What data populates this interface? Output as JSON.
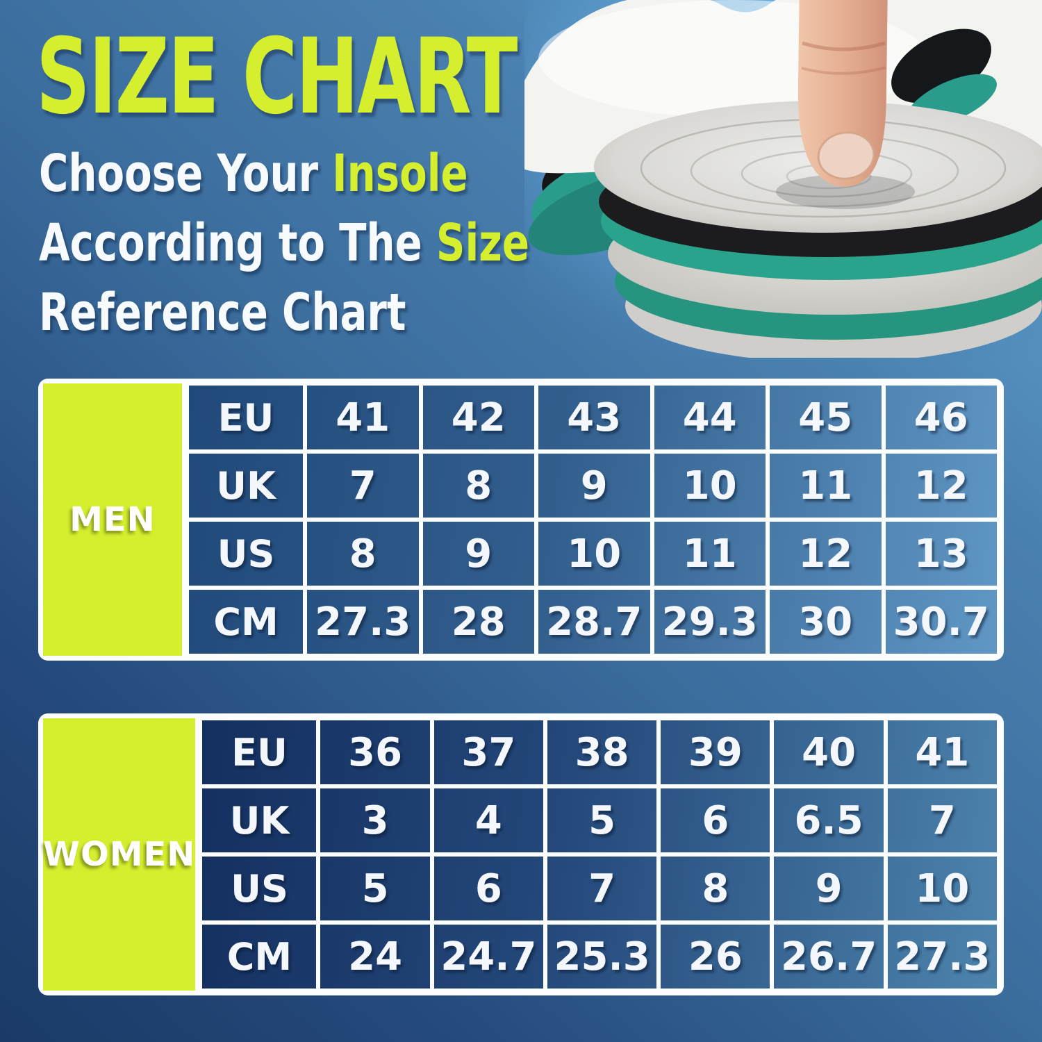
{
  "header": {
    "title": "SIZE CHART",
    "subtitle_lines": [
      {
        "plain": "Choose Your ",
        "accent": "Insole"
      },
      {
        "plain": "According to The ",
        "accent": "Size"
      },
      {
        "plain": "Reference Chart",
        "accent": ""
      }
    ]
  },
  "photo": {
    "name": "finger-pressing-stacked-insoles-photo",
    "sky_color": "#63a7d7"
  },
  "colors": {
    "accent_lime": "#d5ef2e",
    "background_top_right": "#66abd9",
    "background_bottom_left": "#1b3a66",
    "table_grid_line": "#fbfdfe",
    "men_table_dark": "#20497a",
    "men_table_light": "#6097c4",
    "women_table_dark": "#142f60",
    "women_table_light": "#4d84ad",
    "insole_teal": "#2aa38c"
  },
  "chart_data": [
    {
      "type": "table",
      "group_label": "MEN",
      "row_headers": [
        "EU",
        "UK",
        "US",
        "CM"
      ],
      "rows": [
        [
          "41",
          "42",
          "43",
          "44",
          "45",
          "46"
        ],
        [
          "7",
          "8",
          "9",
          "10",
          "11",
          "12"
        ],
        [
          "8",
          "9",
          "10",
          "11",
          "12",
          "13"
        ],
        [
          "27.3",
          "28",
          "28.7",
          "29.3",
          "30",
          "30.7"
        ]
      ]
    },
    {
      "type": "table",
      "group_label": "WOMEN",
      "row_headers": [
        "EU",
        "UK",
        "US",
        "CM"
      ],
      "rows": [
        [
          "36",
          "37",
          "38",
          "39",
          "40",
          "41"
        ],
        [
          "3",
          "4",
          "5",
          "6",
          "6.5",
          "7"
        ],
        [
          "5",
          "6",
          "7",
          "8",
          "9",
          "10"
        ],
        [
          "24",
          "24.7",
          "25.3",
          "26",
          "26.7",
          "27.3"
        ]
      ]
    }
  ]
}
